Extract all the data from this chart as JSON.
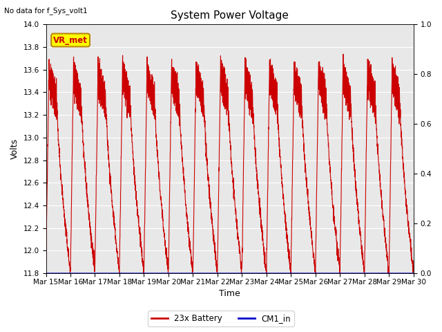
{
  "title": "System Power Voltage",
  "subtitle": "No data for f_Sys_volt1",
  "xlabel": "Time",
  "ylabel": "Volts",
  "ylim_left": [
    11.8,
    14.0
  ],
  "ylim_right": [
    0.0,
    1.0
  ],
  "background_color": "#ffffff",
  "plot_bg_color": "#e8e8e8",
  "grid_color": "#ffffff",
  "legend_entries": [
    "23x Battery",
    "CM1_in"
  ],
  "legend_colors": [
    "#cc0000",
    "#0000cc"
  ],
  "annotation_label": "VR_met",
  "annotation_bg": "#ffff00",
  "annotation_border": "#b8860b",
  "x_tick_labels": [
    "Mar 15",
    "Mar 16",
    "Mar 17",
    "Mar 18",
    "Mar 19",
    "Mar 20",
    "Mar 21",
    "Mar 22",
    "Mar 23",
    "Mar 24",
    "Mar 25",
    "Mar 26",
    "Mar 27",
    "Mar 28",
    "Mar 29",
    "Mar 30"
  ],
  "battery_color": "#cc0000",
  "cm1_color": "#0000cc",
  "title_fontsize": 11,
  "label_fontsize": 9,
  "tick_fontsize": 7.5
}
